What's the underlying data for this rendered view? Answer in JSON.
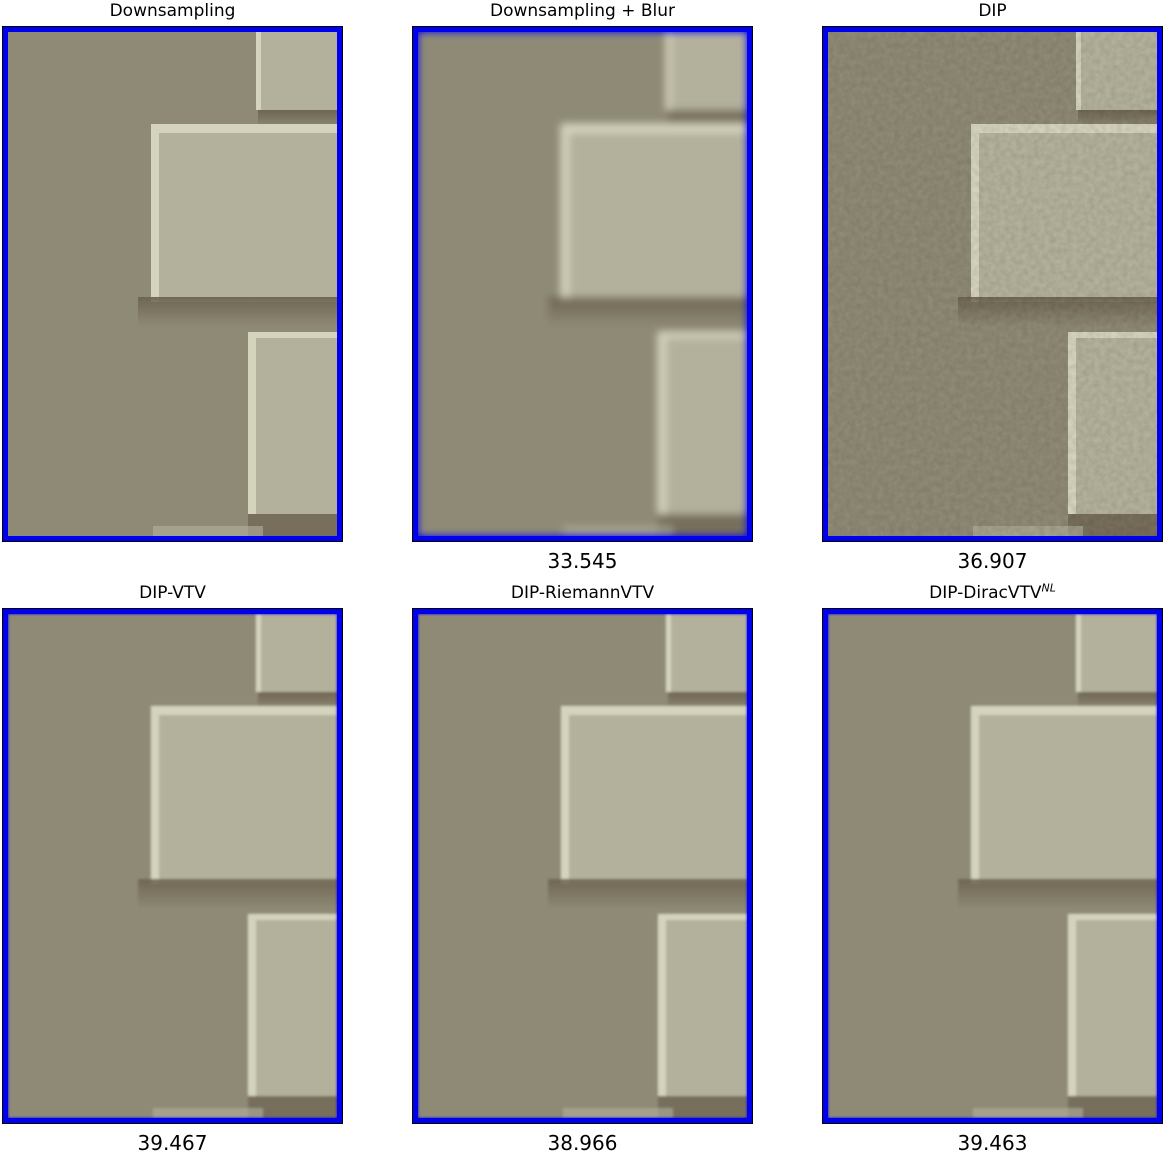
{
  "figure": {
    "colors": {
      "frame": "#0000ef",
      "background_wall": "#8e8a76",
      "brick_face": "#b3b19c",
      "brick_edge_highlight": "#d4d3bc",
      "shadow": "#6e6351"
    },
    "panels": [
      {
        "title": "Downsampling",
        "title_sup": "",
        "score": "",
        "variant": "sharp"
      },
      {
        "title": "Downsampling + Blur",
        "title_sup": "",
        "score": "33.545",
        "variant": "blur"
      },
      {
        "title": "DIP",
        "title_sup": "",
        "score": "36.907",
        "variant": "noisy"
      },
      {
        "title": "DIP-VTV",
        "title_sup": "",
        "score": "39.467",
        "variant": "smooth"
      },
      {
        "title": "DIP-RiemannVTV",
        "title_sup": "",
        "score": "38.966",
        "variant": "smooth"
      },
      {
        "title": "DIP-DiracVTV",
        "title_sup": "NL",
        "score": "39.463",
        "variant": "smooth"
      }
    ]
  }
}
